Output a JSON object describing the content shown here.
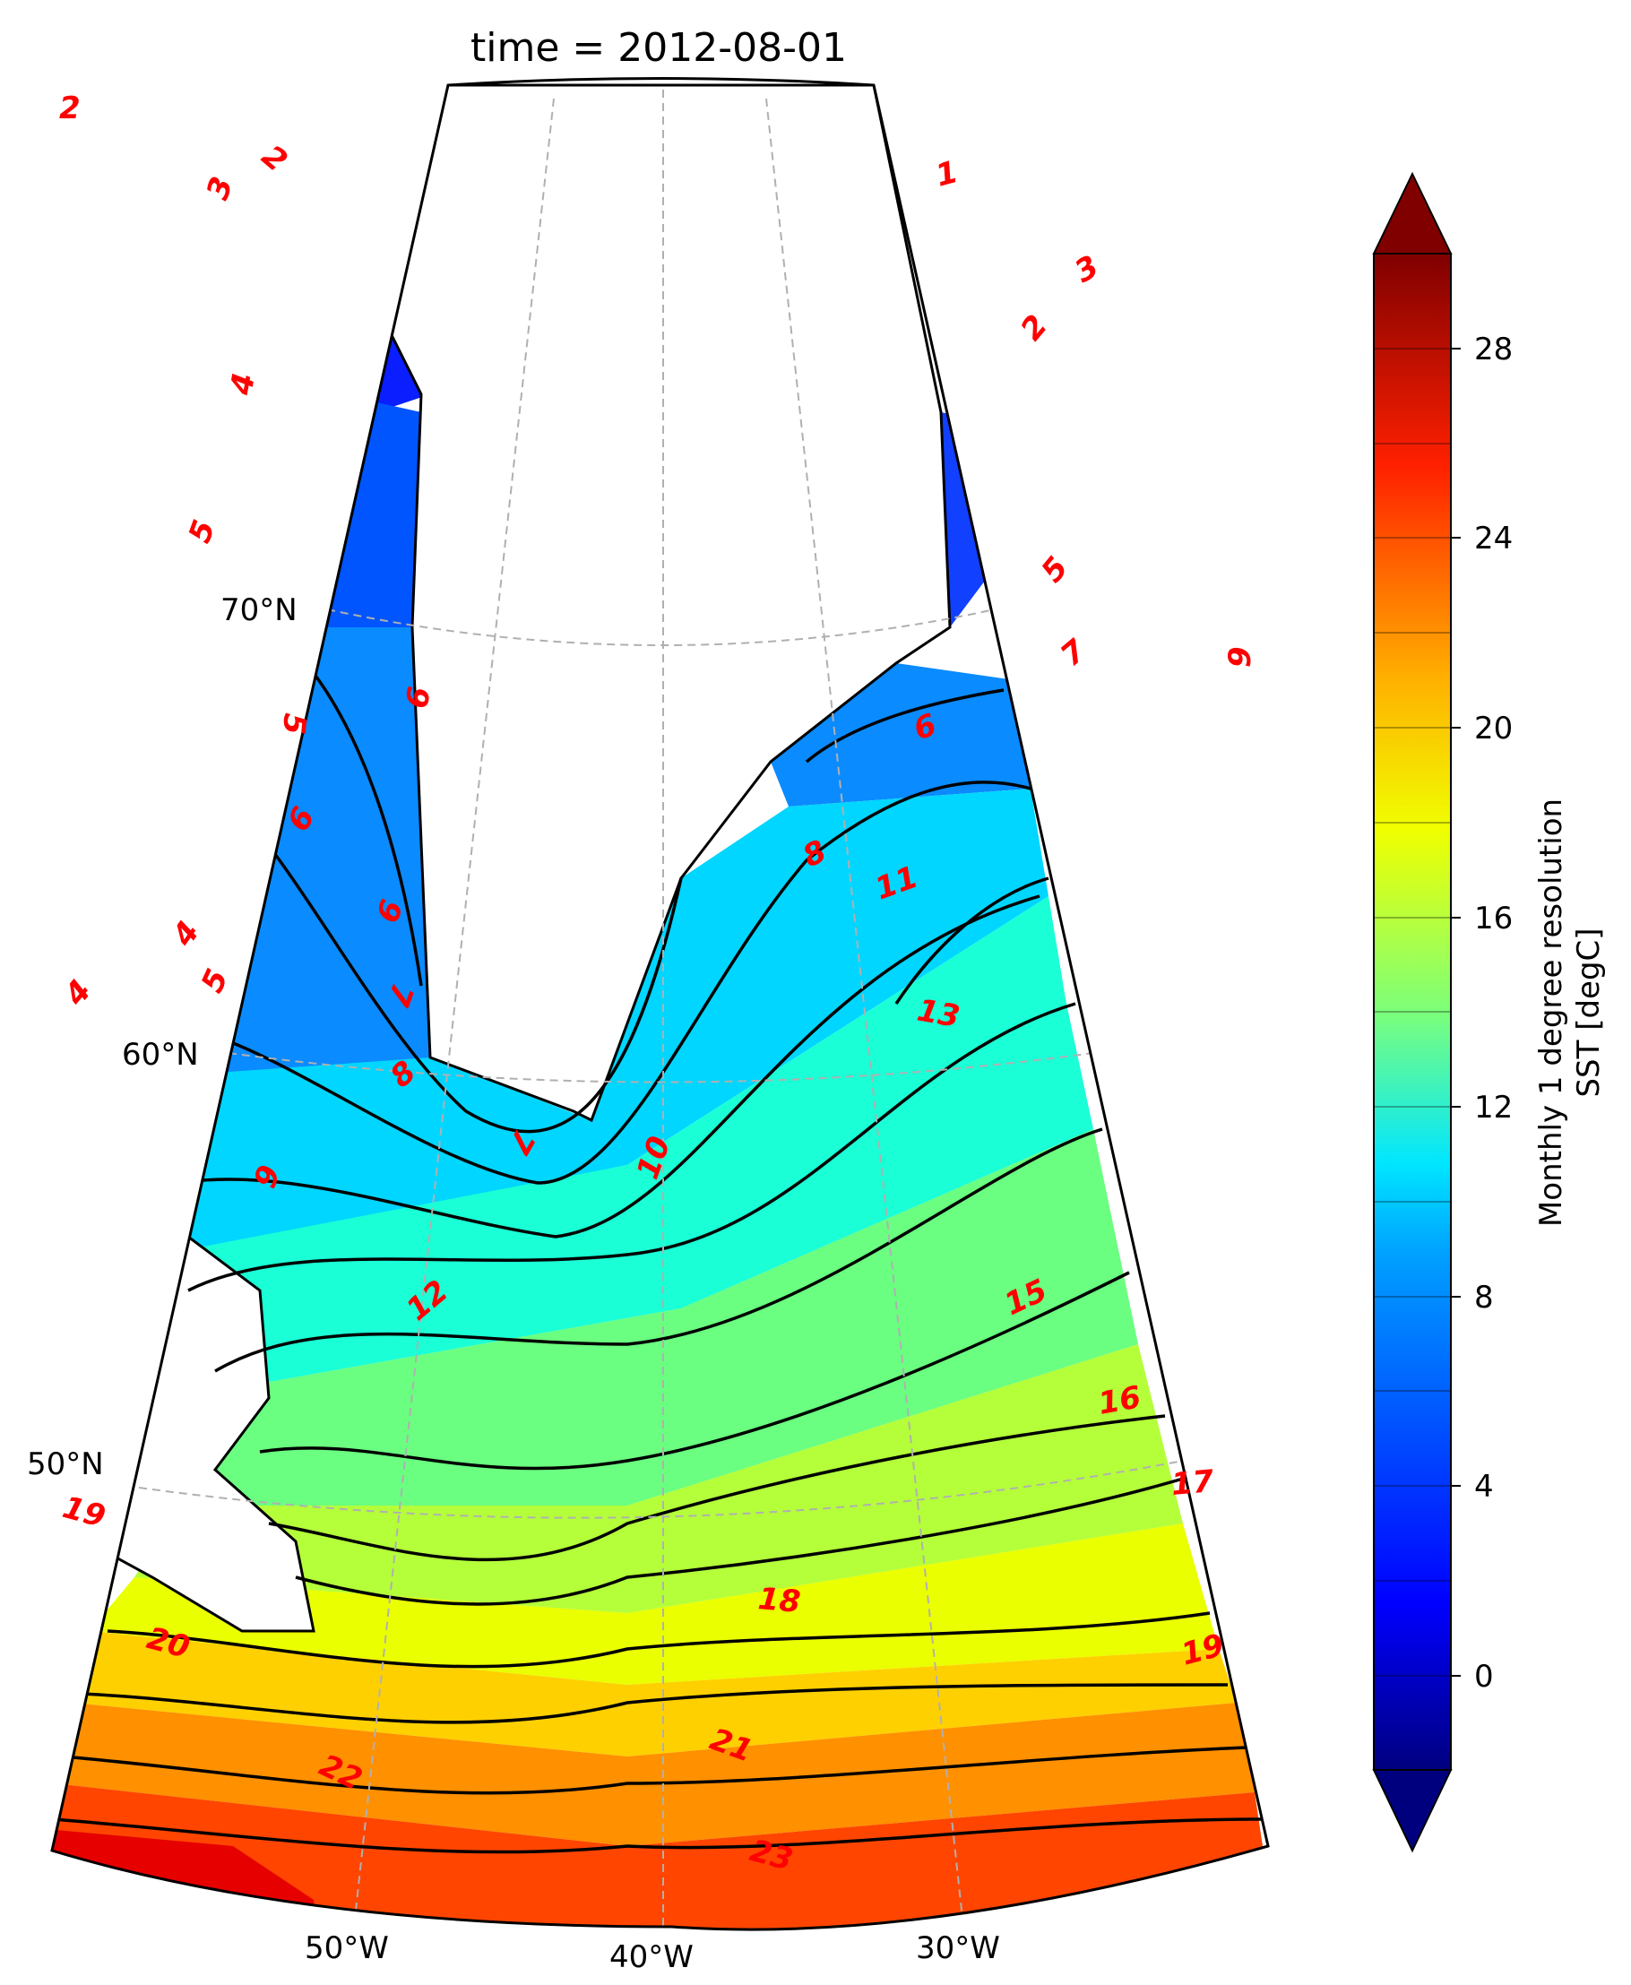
{
  "title": "time = 2012-08-01",
  "map": {
    "projection": "conic",
    "region": "North Atlantic / Greenland",
    "lat_labels": [
      "70°N",
      "60°N",
      "50°N"
    ],
    "lon_labels": [
      "50°W",
      "40°W",
      "30°W"
    ],
    "gridlines": "dashed grey",
    "contour_line_color": "#000000",
    "contour_label_color": "#ff0000"
  },
  "colorbar": {
    "label_line1": "Monthly 1 degree resolution",
    "label_line2": "SST [degC]",
    "ticks": [
      "0",
      "4",
      "8",
      "12",
      "16",
      "20",
      "24",
      "28"
    ],
    "min": -2,
    "max": 30,
    "extend": "both",
    "colormap": "jet"
  },
  "contour_labels": [
    {
      "text": "2"
    },
    {
      "text": "2"
    },
    {
      "text": "3"
    },
    {
      "text": "1"
    },
    {
      "text": "3"
    },
    {
      "text": "2"
    },
    {
      "text": "4"
    },
    {
      "text": "5"
    },
    {
      "text": "5"
    },
    {
      "text": "7"
    },
    {
      "text": "9"
    },
    {
      "text": "5"
    },
    {
      "text": "6"
    },
    {
      "text": "6"
    },
    {
      "text": "6"
    },
    {
      "text": "8"
    },
    {
      "text": "11"
    },
    {
      "text": "6"
    },
    {
      "text": "4"
    },
    {
      "text": "5"
    },
    {
      "text": "4"
    },
    {
      "text": "7"
    },
    {
      "text": "13"
    },
    {
      "text": "8"
    },
    {
      "text": "7"
    },
    {
      "text": "10"
    },
    {
      "text": "9"
    },
    {
      "text": "12"
    },
    {
      "text": "15"
    },
    {
      "text": "16"
    },
    {
      "text": "17"
    },
    {
      "text": "19"
    },
    {
      "text": "18"
    },
    {
      "text": "20"
    },
    {
      "text": "19"
    },
    {
      "text": "21"
    },
    {
      "text": "22"
    },
    {
      "text": "23"
    }
  ]
}
